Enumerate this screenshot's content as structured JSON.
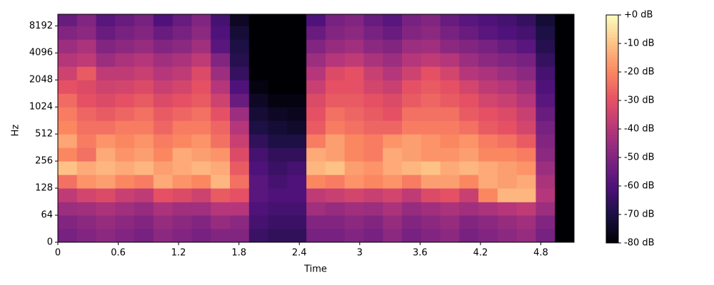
{
  "chart_data": {
    "type": "spectrogram",
    "xlabel": "Time",
    "ylabel": "Hz",
    "xlim": [
      0,
      5.13
    ],
    "xticks": [
      0,
      0.6,
      1.2,
      1.8,
      2.4,
      3,
      3.6,
      4.2,
      4.8
    ],
    "ylim": [
      0,
      11025
    ],
    "yscale": "symlog",
    "linthresh": 64,
    "yticks": [
      0,
      64,
      128,
      256,
      512,
      1024,
      2048,
      4096,
      8192
    ],
    "colormap": "magma",
    "clim": [
      -80,
      0
    ],
    "cticks": [
      {
        "value": 0,
        "label": "+0 dB"
      },
      {
        "value": -10,
        "label": "-10 dB"
      },
      {
        "value": -20,
        "label": "-20 dB"
      },
      {
        "value": -30,
        "label": "-30 dB"
      },
      {
        "value": -40,
        "label": "-40 dB"
      },
      {
        "value": -50,
        "label": "-50 dB"
      },
      {
        "value": -60,
        "label": "-60 dB"
      },
      {
        "value": -70,
        "label": "-70 dB"
      },
      {
        "value": -80,
        "label": "-80 dB"
      }
    ],
    "time_bins": [
      0,
      0.19,
      0.38,
      0.57,
      0.76,
      0.95,
      1.14,
      1.33,
      1.52,
      1.71,
      1.9,
      2.09,
      2.28,
      2.47,
      2.66,
      2.85,
      3.04,
      3.23,
      3.42,
      3.61,
      3.8,
      3.99,
      4.18,
      4.37,
      4.56,
      4.75,
      4.94,
      5.13
    ],
    "freq_bins": [
      0,
      32,
      64,
      90,
      128,
      181,
      256,
      362,
      512,
      724,
      1024,
      1448,
      2048,
      2896,
      4096,
      5793,
      8192,
      11025
    ],
    "values": [
      [
        -52,
        -50,
        -48,
        -50,
        -52,
        -48,
        -50,
        -52,
        -50,
        -50,
        -64,
        -66,
        -66,
        -52,
        -52,
        -50,
        -52,
        -48,
        -52,
        -50,
        -48,
        -52,
        -50,
        -48,
        -46,
        -52,
        -80
      ],
      [
        -50,
        -48,
        -46,
        -48,
        -50,
        -46,
        -48,
        -50,
        -46,
        -48,
        -62,
        -64,
        -64,
        -50,
        -50,
        -48,
        -50,
        -46,
        -50,
        -48,
        -46,
        -50,
        -48,
        -46,
        -44,
        -50,
        -80
      ],
      [
        -45,
        -44,
        -42,
        -44,
        -46,
        -42,
        -44,
        -44,
        -40,
        -40,
        -60,
        -62,
        -62,
        -44,
        -46,
        -44,
        -45,
        -42,
        -46,
        -44,
        -42,
        -44,
        -42,
        -40,
        -38,
        -45,
        -80
      ],
      [
        -38,
        -34,
        -32,
        -36,
        -38,
        -30,
        -32,
        -35,
        -28,
        -30,
        -58,
        -60,
        -60,
        -38,
        -36,
        -34,
        -36,
        -34,
        -38,
        -32,
        -30,
        -36,
        -20,
        -12,
        -12,
        -40,
        -80
      ],
      [
        -24,
        -18,
        -16,
        -20,
        -22,
        -14,
        -18,
        -20,
        -12,
        -24,
        -58,
        -62,
        -60,
        -20,
        -22,
        -18,
        -20,
        -18,
        -22,
        -16,
        -16,
        -20,
        -14,
        -16,
        -14,
        -42,
        -80
      ],
      [
        -10,
        -14,
        -12,
        -14,
        -12,
        -16,
        -14,
        -12,
        -14,
        -28,
        -60,
        -64,
        -62,
        -12,
        -10,
        -16,
        -18,
        -14,
        -12,
        -10,
        -14,
        -12,
        -14,
        -16,
        -18,
        -45,
        -80
      ],
      [
        -20,
        -24,
        -14,
        -18,
        -16,
        -20,
        -14,
        -16,
        -18,
        -32,
        -62,
        -66,
        -66,
        -14,
        -16,
        -20,
        -22,
        -14,
        -16,
        -18,
        -18,
        -16,
        -20,
        -20,
        -22,
        -48,
        -80
      ],
      [
        -15,
        -22,
        -18,
        -20,
        -18,
        -22,
        -20,
        -18,
        -24,
        -36,
        -66,
        -70,
        -70,
        -22,
        -16,
        -20,
        -22,
        -18,
        -16,
        -18,
        -20,
        -18,
        -22,
        -24,
        -28,
        -50,
        -80
      ],
      [
        -20,
        -24,
        -24,
        -22,
        -22,
        -26,
        -22,
        -22,
        -26,
        -40,
        -70,
        -72,
        -74,
        -28,
        -22,
        -24,
        -26,
        -26,
        -22,
        -22,
        -22,
        -24,
        -28,
        -30,
        -34,
        -52,
        -80
      ],
      [
        -22,
        -26,
        -28,
        -26,
        -24,
        -28,
        -26,
        -24,
        -30,
        -45,
        -72,
        -75,
        -76,
        -30,
        -24,
        -26,
        -28,
        -30,
        -24,
        -24,
        -24,
        -28,
        -30,
        -32,
        -36,
        -55,
        -80
      ],
      [
        -25,
        -30,
        -32,
        -30,
        -28,
        -32,
        -30,
        -28,
        -35,
        -55,
        -75,
        -78,
        -78,
        -32,
        -28,
        -28,
        -30,
        -32,
        -28,
        -26,
        -28,
        -30,
        -34,
        -36,
        -40,
        -58,
        -80
      ],
      [
        -30,
        -32,
        -35,
        -34,
        -32,
        -36,
        -34,
        -30,
        -40,
        -60,
        -78,
        -80,
        -80,
        -36,
        -30,
        -30,
        -34,
        -36,
        -30,
        -28,
        -30,
        -34,
        -38,
        -40,
        -44,
        -60,
        -80
      ],
      [
        -35,
        -28,
        -38,
        -38,
        -36,
        -40,
        -38,
        -32,
        -45,
        -65,
        -80,
        -80,
        -80,
        -40,
        -32,
        -30,
        -36,
        -40,
        -35,
        -30,
        -34,
        -40,
        -42,
        -45,
        -48,
        -62,
        -80
      ],
      [
        -40,
        -38,
        -45,
        -42,
        -40,
        -44,
        -42,
        -38,
        -50,
        -68,
        -80,
        -80,
        -80,
        -45,
        -40,
        -38,
        -42,
        -45,
        -40,
        -38,
        -40,
        -45,
        -48,
        -50,
        -52,
        -65,
        -80
      ],
      [
        -45,
        -42,
        -50,
        -48,
        -46,
        -50,
        -48,
        -44,
        -58,
        -70,
        -80,
        -80,
        -80,
        -50,
        -46,
        -44,
        -48,
        -50,
        -45,
        -44,
        -48,
        -50,
        -52,
        -55,
        -58,
        -68,
        -80
      ],
      [
        -50,
        -48,
        -55,
        -52,
        -50,
        -55,
        -52,
        -48,
        -60,
        -72,
        -80,
        -80,
        -80,
        -55,
        -50,
        -48,
        -52,
        -55,
        -50,
        -48,
        -52,
        -55,
        -58,
        -60,
        -62,
        -70,
        -80
      ],
      [
        -55,
        -50,
        -58,
        -55,
        -52,
        -60,
        -55,
        -50,
        -62,
        -75,
        -80,
        -80,
        -80,
        -60,
        -52,
        -50,
        -55,
        -58,
        -52,
        -50,
        -55,
        -58,
        -60,
        -62,
        -65,
        -72,
        -80
      ]
    ]
  }
}
